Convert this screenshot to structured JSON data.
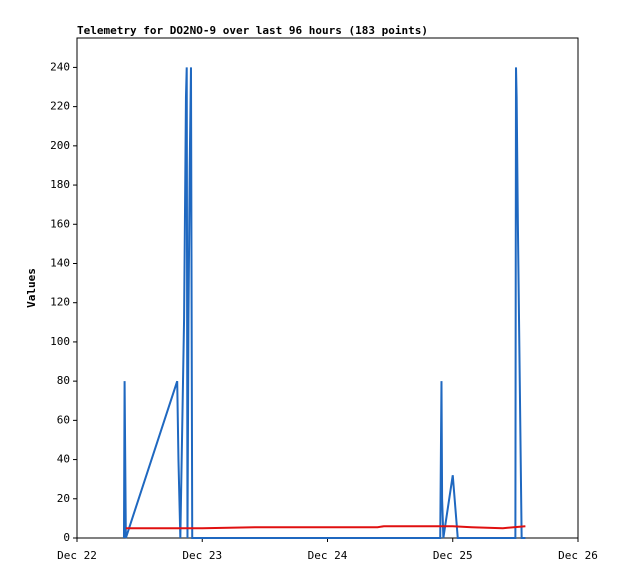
{
  "chart_data": {
    "type": "line",
    "title": "Telemetry for DO2NO-9 over last 96 hours (183 points)",
    "y_label": "Values",
    "xlim": [
      0,
      4
    ],
    "ylim": [
      0,
      255
    ],
    "xticks": [
      {
        "value": 0,
        "label": "Dec 22"
      },
      {
        "value": 1,
        "label": "Dec 23"
      },
      {
        "value": 2,
        "label": "Dec 24"
      },
      {
        "value": 3,
        "label": "Dec 25"
      },
      {
        "value": 4,
        "label": "Dec 26"
      }
    ],
    "yticks": [
      0,
      20,
      40,
      60,
      80,
      100,
      120,
      140,
      160,
      180,
      200,
      220,
      240
    ],
    "series": [
      {
        "color": "#1f68c0",
        "x": [
          0.375,
          0.38,
          0.385,
          0.39,
          0.8,
          0.81,
          0.825,
          0.855,
          0.87,
          0.876,
          0.882,
          0.89,
          0.9,
          0.91,
          0.92,
          2.9,
          2.91,
          2.915,
          2.925,
          3.0,
          3.04,
          3.5,
          3.505,
          3.51,
          3.52,
          3.55,
          3.58
        ],
        "values": [
          0,
          80,
          40,
          0,
          80,
          40,
          0,
          112,
          225,
          240,
          0,
          112,
          190,
          240,
          0,
          0,
          80,
          20,
          0,
          32,
          0,
          0,
          240,
          225,
          160,
          0,
          0
        ]
      },
      {
        "color": "#e01010",
        "x": [
          0.39,
          1.0,
          1.44,
          2.4,
          2.45,
          3.0,
          3.15,
          3.4,
          3.58
        ],
        "values": [
          5,
          5,
          5.5,
          5.5,
          6,
          6,
          5.5,
          5,
          6
        ]
      }
    ]
  }
}
